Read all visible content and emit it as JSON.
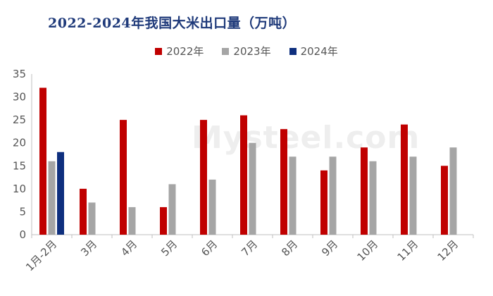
{
  "chart_data": {
    "type": "bar",
    "title": "2022-2024年我国大米出口量（万吨）",
    "categories": [
      "1月-2月",
      "3月",
      "4月",
      "5月",
      "6月",
      "7月",
      "8月",
      "9月",
      "10月",
      "11月",
      "12月"
    ],
    "series": [
      {
        "name": "2022年",
        "color": "#c00000",
        "values": [
          32,
          10,
          25,
          6,
          25,
          26,
          23,
          14,
          19,
          24,
          15
        ]
      },
      {
        "name": "2023年",
        "color": "#a5a5a5",
        "values": [
          16,
          7,
          6,
          11,
          12,
          20,
          17,
          17,
          16,
          17,
          19
        ]
      },
      {
        "name": "2024年",
        "color": "#0e2f7e",
        "values": [
          18,
          null,
          null,
          null,
          null,
          null,
          null,
          null,
          null,
          null,
          null
        ]
      }
    ],
    "ylim": [
      0,
      35
    ],
    "yticks": [
      0,
      5,
      10,
      15,
      20,
      25,
      30,
      35
    ],
    "grid": false,
    "legend_position": "top-center",
    "watermark": "Mysteel.com"
  }
}
